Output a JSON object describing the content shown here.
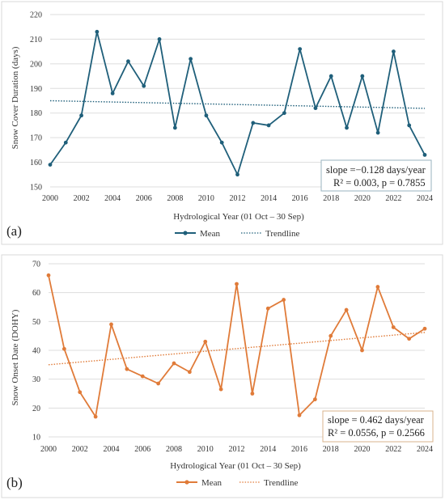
{
  "chart_data": [
    {
      "type": "line",
      "panel_label": "(a)",
      "ylabel": "Snow Cover Duration (days)",
      "xlabel": "Hydrological Year (01 Oct – 30 Sep)",
      "ylim": [
        150,
        220
      ],
      "yticks": [
        150,
        160,
        170,
        180,
        190,
        200,
        210,
        220
      ],
      "xlim": [
        2000,
        2024
      ],
      "xticks": [
        2000,
        2002,
        2004,
        2006,
        2008,
        2010,
        2012,
        2014,
        2016,
        2018,
        2020,
        2022,
        2024
      ],
      "grid": "horizontal",
      "x": [
        2000,
        2001,
        2002,
        2003,
        2004,
        2005,
        2006,
        2007,
        2008,
        2009,
        2010,
        2011,
        2012,
        2013,
        2014,
        2015,
        2016,
        2017,
        2018,
        2019,
        2020,
        2021,
        2022,
        2023,
        2024
      ],
      "series": [
        {
          "name": "Mean",
          "color": "#1f5f7a",
          "values": [
            159,
            168,
            179,
            213,
            188,
            201,
            191,
            210,
            174,
            202,
            179,
            168,
            155,
            176,
            175,
            180,
            206,
            182,
            195,
            174,
            195,
            172,
            205,
            175,
            163
          ]
        }
      ],
      "trendline": {
        "name": "Trendline",
        "color": "#1f5f7a",
        "start": [
          2000,
          185
        ],
        "end": [
          2024,
          181.9
        ]
      },
      "stats": [
        "slope =−0.128 days/year",
        "R² = 0.003, p = 0.7855"
      ],
      "stats_border": "#9ab3bf",
      "legend": [
        "Mean",
        "Trendline"
      ],
      "legend_position": "bottom-center"
    },
    {
      "type": "line",
      "panel_label": "(b)",
      "ylabel": "Snow Onset Date (DOHY)",
      "xlabel": "Hydrological Year (01 Oct – 30 Sep)",
      "ylim": [
        10,
        70
      ],
      "yticks": [
        10,
        20,
        30,
        40,
        50,
        60,
        70
      ],
      "xlim": [
        2000,
        2024
      ],
      "xticks": [
        2000,
        2002,
        2004,
        2006,
        2008,
        2010,
        2012,
        2014,
        2016,
        2018,
        2020,
        2022,
        2024
      ],
      "grid": "horizontal",
      "x": [
        2000,
        2001,
        2002,
        2003,
        2004,
        2005,
        2006,
        2007,
        2008,
        2009,
        2010,
        2011,
        2012,
        2013,
        2014,
        2015,
        2016,
        2017,
        2018,
        2019,
        2020,
        2021,
        2022,
        2023,
        2024
      ],
      "series": [
        {
          "name": "Mean",
          "color": "#e07b39",
          "values": [
            66,
            40.5,
            25.5,
            17,
            49,
            33.5,
            31,
            28.5,
            35.5,
            32.5,
            43,
            26.5,
            63,
            25,
            54.5,
            57.5,
            17.5,
            23,
            45,
            54,
            40,
            62,
            48,
            44,
            47.5
          ]
        }
      ],
      "trendline": {
        "name": "Trendline",
        "color": "#e07b39",
        "start": [
          2000,
          35
        ],
        "end": [
          2024,
          46.2
        ]
      },
      "stats": [
        "slope = 0.462 days/year",
        "R² = 0.0556, p = 0.2566"
      ],
      "stats_border": "#d9b38c",
      "legend": [
        "Mean",
        "Trendline"
      ],
      "legend_position": "bottom-center"
    }
  ]
}
